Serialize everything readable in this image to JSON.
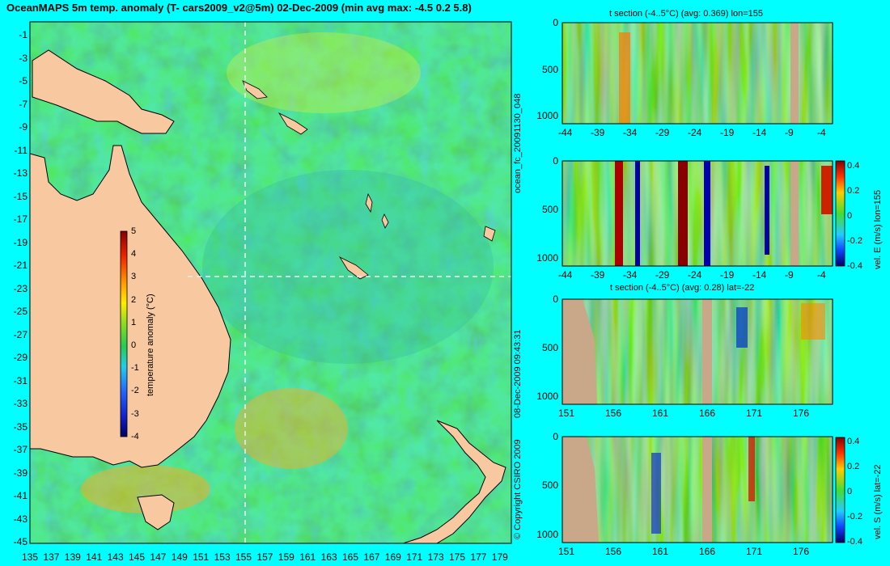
{
  "title": "OceanMAPS 5m temp. anomaly (T- cars2009_v2@5m) 02-Dec-2009 (min avg max: -4.5 0.2 5.8)",
  "side_labels": {
    "forecast_id": "ocean_fc_20091130_048",
    "timestamp": "08-Dec-2009 09:43:31",
    "copyright": "© Copyright CSIRO 2009"
  },
  "colors": {
    "background": "#00ffff",
    "land": "#f8c8a0",
    "section_land": "#c8a888",
    "ocean_base": "#22cc44",
    "warm": "#ff8800",
    "hot": "#cc0000",
    "cool": "#2299ff",
    "cold": "#000088"
  },
  "map": {
    "lat_labels": [
      "-1",
      "-3",
      "-5",
      "-7",
      "-9",
      "-11",
      "-13",
      "-15",
      "-17",
      "-19",
      "-21",
      "-23",
      "-25",
      "-27",
      "-29",
      "-31",
      "-33",
      "-35",
      "-37",
      "-39",
      "-41",
      "-43",
      "-45"
    ],
    "lon_labels": [
      "135",
      "137",
      "139",
      "141",
      "143",
      "145",
      "147",
      "149",
      "151",
      "153",
      "155",
      "157",
      "159",
      "161",
      "163",
      "165",
      "167",
      "169",
      "171",
      "173",
      "175",
      "177",
      "179"
    ],
    "colorbar": {
      "ticks": [
        "5",
        "4",
        "3",
        "2",
        "1",
        "0",
        "-1",
        "-2",
        "-3",
        "-4"
      ],
      "label": "temperature anomaly (°C)"
    },
    "crosshair": {
      "lon": 155,
      "lat": -22
    }
  },
  "panels": [
    {
      "title": "t section (-4..5°C) (avg: 0.369) lon=155",
      "y_ticks": [
        "0",
        "500",
        "1000"
      ],
      "x_ticks": [
        "-44",
        "-39",
        "-34",
        "-29",
        "-24",
        "-19",
        "-14",
        "-9",
        "-4"
      ],
      "colorbar": null
    },
    {
      "title": "",
      "y_ticks": [
        "0",
        "500",
        "1000"
      ],
      "x_ticks": [
        "-44",
        "-39",
        "-34",
        "-29",
        "-24",
        "-19",
        "-14",
        "-9",
        "-4"
      ],
      "colorbar": {
        "ticks": [
          "0.4",
          "0.2",
          "0",
          "-0.2",
          "-0.4"
        ],
        "label": "vel. E (m/s) lon=155"
      }
    },
    {
      "title": "t section (-4..5°C) (avg: 0.28) lat=-22",
      "y_ticks": [
        "0",
        "500",
        "1000"
      ],
      "x_ticks": [
        "151",
        "156",
        "161",
        "166",
        "171",
        "176"
      ],
      "colorbar": null
    },
    {
      "title": "",
      "y_ticks": [
        "0",
        "500",
        "1000"
      ],
      "x_ticks": [
        "151",
        "156",
        "161",
        "166",
        "171",
        "176"
      ],
      "colorbar": {
        "ticks": [
          "0.4",
          "0.2",
          "0",
          "-0.2",
          "-0.4"
        ],
        "label": "vel. S (m/s) lat=-22"
      }
    }
  ]
}
